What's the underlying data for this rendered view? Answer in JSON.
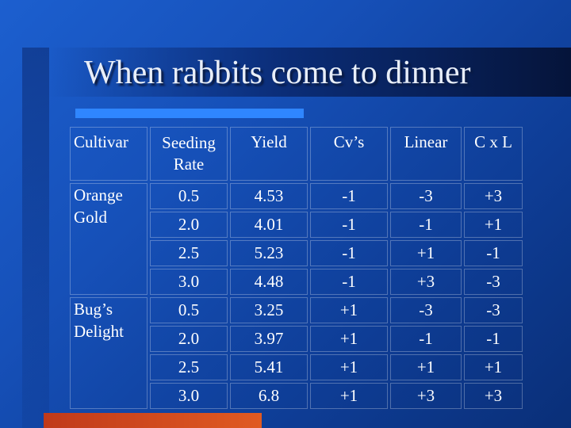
{
  "slide": {
    "title": "When rabbits come to dinner",
    "colors": {
      "background": "#1650b8",
      "accent_bar": "#2f86ff",
      "bottom_bar": "#d04a1e",
      "text": "#ffffff"
    }
  },
  "table": {
    "headers": {
      "cultivar": "Cultivar",
      "seeding_line1": "Seeding",
      "seeding_line2": "Rate",
      "yield": "Yield",
      "cvs": "Cv’s",
      "linear": "Linear",
      "cxl": "C x L"
    },
    "groups": [
      {
        "cultivar_line1": "Orange",
        "cultivar_line2": "Gold",
        "rows": [
          {
            "rate": "0.5",
            "yield": "4.53",
            "cv": "-1",
            "linear": "-3",
            "cxl": "+3"
          },
          {
            "rate": "2.0",
            "yield": "4.01",
            "cv": "-1",
            "linear": "-1",
            "cxl": "+1"
          },
          {
            "rate": "2.5",
            "yield": "5.23",
            "cv": "-1",
            "linear": "+1",
            "cxl": "-1"
          },
          {
            "rate": "3.0",
            "yield": "4.48",
            "cv": "-1",
            "linear": "+3",
            "cxl": "-3"
          }
        ]
      },
      {
        "cultivar_line1": "Bug’s",
        "cultivar_line2": "Delight",
        "rows": [
          {
            "rate": "0.5",
            "yield": "3.25",
            "cv": "+1",
            "linear": "-3",
            "cxl": "-3"
          },
          {
            "rate": "2.0",
            "yield": "3.97",
            "cv": "+1",
            "linear": "-1",
            "cxl": "-1"
          },
          {
            "rate": "2.5",
            "yield": "5.41",
            "cv": "+1",
            "linear": "+1",
            "cxl": "+1"
          },
          {
            "rate": "3.0",
            "yield": "6.8",
            "cv": "+1",
            "linear": "+3",
            "cxl": "+3"
          }
        ]
      }
    ]
  }
}
